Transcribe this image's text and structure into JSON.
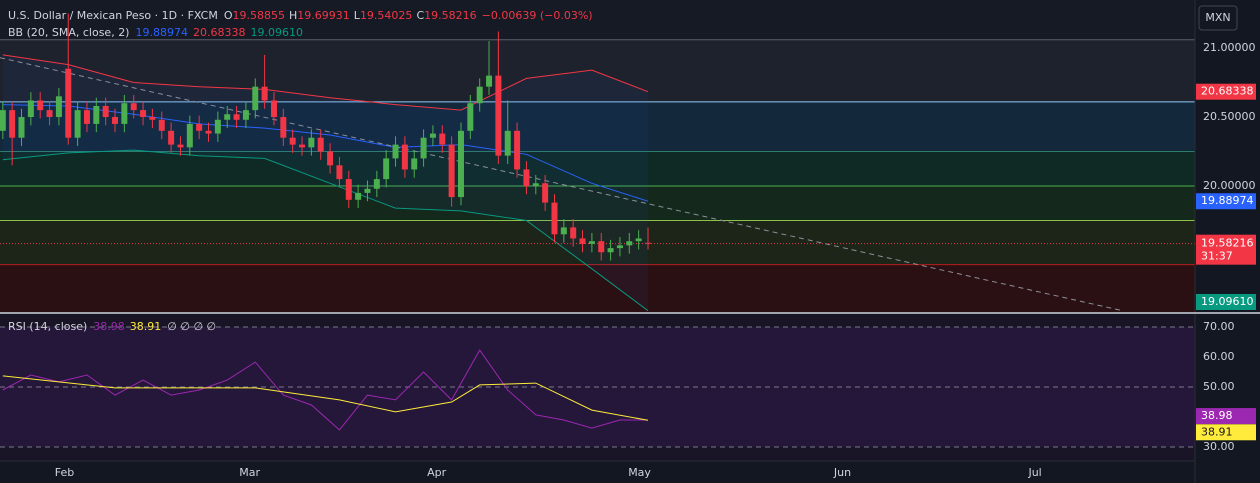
{
  "chart_data": {
    "type": "candlestick",
    "title": "U.S. Dollar / Mexican Peso · 1D · FXCM",
    "ohlc_letters": [
      "O",
      "H",
      "L",
      "C"
    ],
    "change": "−0.00639 (−0.03%)",
    "currency": "MXN",
    "countdown": "31:37",
    "up_color": "#4caf50",
    "down_color": "#f23645",
    "x": [
      0,
      1,
      2,
      3,
      4,
      5,
      6,
      7,
      8,
      9,
      10,
      11,
      12,
      13,
      14,
      15,
      16,
      17,
      18,
      19,
      20,
      21,
      22,
      23,
      24,
      25,
      26,
      27,
      28,
      29,
      30,
      31,
      32,
      33,
      34,
      35,
      36,
      37,
      38,
      39,
      40,
      41,
      42,
      43,
      44,
      45,
      46,
      47,
      48,
      49,
      50,
      51,
      52,
      53,
      54,
      55,
      56,
      57,
      58,
      59,
      60,
      61,
      62,
      63,
      64,
      65,
      66,
      67,
      68,
      69
    ],
    "open": [
      20.4,
      20.55,
      20.35,
      20.5,
      20.62,
      20.55,
      20.5,
      20.85,
      20.35,
      20.55,
      20.45,
      20.58,
      20.5,
      20.45,
      20.6,
      20.55,
      20.5,
      20.48,
      20.4,
      20.3,
      20.28,
      20.45,
      20.4,
      20.38,
      20.48,
      20.52,
      20.48,
      20.55,
      20.72,
      20.62,
      20.5,
      20.35,
      20.3,
      20.28,
      20.35,
      20.25,
      20.15,
      20.05,
      19.9,
      19.95,
      19.98,
      20.05,
      20.2,
      20.3,
      20.12,
      20.2,
      20.35,
      20.38,
      20.3,
      19.92,
      20.4,
      20.6,
      20.72,
      20.8,
      20.22,
      20.4,
      20.12,
      20.0,
      20.02,
      19.88,
      19.65,
      19.7,
      19.62,
      19.58,
      19.6,
      19.52,
      19.55,
      19.57,
      19.6,
      19.58855
    ],
    "high": [
      20.61,
      20.61,
      20.56,
      20.68,
      20.68,
      20.61,
      20.71,
      21.25,
      20.61,
      20.61,
      20.64,
      20.64,
      20.56,
      20.66,
      20.66,
      20.61,
      20.56,
      20.54,
      20.46,
      20.36,
      20.51,
      20.51,
      20.46,
      20.54,
      20.58,
      20.58,
      20.61,
      20.78,
      20.95,
      20.68,
      20.56,
      20.41,
      20.36,
      20.41,
      20.41,
      20.31,
      20.21,
      20.11,
      20.01,
      20.04,
      20.11,
      20.26,
      20.36,
      20.36,
      20.26,
      20.41,
      20.44,
      20.44,
      20.36,
      20.46,
      20.66,
      20.78,
      21.05,
      21.12,
      20.62,
      20.46,
      20.18,
      20.08,
      20.08,
      19.94,
      19.76,
      19.76,
      19.68,
      19.66,
      19.66,
      19.61,
      19.63,
      19.66,
      19.68,
      19.69931
    ],
    "low": [
      20.34,
      20.15,
      20.29,
      20.44,
      20.49,
      20.44,
      20.44,
      20.3,
      20.29,
      20.39,
      20.39,
      20.44,
      20.39,
      20.39,
      20.49,
      20.44,
      20.42,
      20.34,
      20.24,
      20.22,
      20.22,
      20.34,
      20.32,
      20.32,
      20.42,
      20.42,
      20.42,
      20.49,
      20.56,
      20.44,
      20.29,
      20.24,
      20.22,
      20.22,
      20.19,
      20.09,
      19.99,
      19.84,
      19.84,
      19.89,
      19.92,
      19.99,
      20.14,
      20.06,
      20.06,
      20.14,
      20.29,
      20.24,
      19.85,
      19.86,
      20.34,
      20.54,
      20.66,
      20.16,
      20.16,
      20.06,
      19.94,
      19.94,
      19.82,
      19.59,
      19.59,
      19.56,
      19.52,
      19.52,
      19.46,
      19.46,
      19.49,
      19.51,
      19.54,
      19.54025
    ],
    "close": [
      20.55,
      20.35,
      20.5,
      20.62,
      20.55,
      20.5,
      20.65,
      20.35,
      20.55,
      20.45,
      20.58,
      20.5,
      20.45,
      20.6,
      20.55,
      20.5,
      20.48,
      20.4,
      20.3,
      20.28,
      20.45,
      20.4,
      20.38,
      20.48,
      20.52,
      20.48,
      20.55,
      20.72,
      20.62,
      20.5,
      20.35,
      20.3,
      20.28,
      20.35,
      20.25,
      20.15,
      20.05,
      19.9,
      19.95,
      19.98,
      20.05,
      20.2,
      20.3,
      20.12,
      20.2,
      20.35,
      20.38,
      20.3,
      19.92,
      20.4,
      20.6,
      20.72,
      20.8,
      20.22,
      20.4,
      20.12,
      20.0,
      20.02,
      19.88,
      19.65,
      19.7,
      19.62,
      19.58,
      19.6,
      19.52,
      19.55,
      19.57,
      19.6,
      19.62,
      19.58216
    ],
    "xlim": [
      -0.3,
      127.5
    ],
    "xticks": [
      {
        "value": 6.6,
        "label": "Feb"
      },
      {
        "value": 26.4,
        "label": "Mar"
      },
      {
        "value": 46.4,
        "label": "Apr"
      },
      {
        "value": 68.1,
        "label": "May"
      },
      {
        "value": 89.8,
        "label": "Jun"
      },
      {
        "value": 110.4,
        "label": "Jul"
      }
    ],
    "ylim": [
      19.087,
      21.348
    ],
    "yticks": [
      {
        "value": 21,
        "label": "21.00000"
      },
      {
        "value": 20.5,
        "label": "20.50000"
      },
      {
        "value": 20,
        "label": "20.00000"
      }
    ],
    "levels": [
      21.06,
      20.61,
      20.25,
      20.0,
      19.75,
      19.43
    ],
    "level_colors": [
      "#5d606b",
      "#90caf9",
      "#2e7d6b",
      "#4caf50",
      "#8bc34a",
      "#b71c1c"
    ],
    "zone_colors": [
      "#161a25",
      "#1e222d",
      "#13283a",
      "#0f2a25",
      "#14281c",
      "#1c2518",
      "#2b1013"
    ],
    "trendline": {
      "x": [
        -0.3,
        119.5
      ],
      "values": [
        20.93,
        19.1
      ],
      "color": "#8a8f9a"
    },
    "bollinger": {
      "label": "BB (20, SMA, close, 2)",
      "fill": "#2962ff",
      "x": [
        0,
        7,
        14,
        21,
        28,
        35,
        42,
        49,
        56,
        63,
        69
      ],
      "series": [
        {
          "color": "#f23645",
          "values": [
            20.95,
            20.88,
            20.75,
            20.72,
            20.7,
            20.64,
            20.59,
            20.55,
            20.78,
            20.84,
            20.68338
          ]
        },
        {
          "color": "#2962ff",
          "values": [
            20.59,
            20.58,
            20.52,
            20.45,
            20.42,
            20.37,
            20.28,
            20.3,
            20.23,
            20.02,
            19.88974
          ]
        },
        {
          "color": "#089981",
          "values": [
            20.19,
            20.24,
            20.26,
            20.22,
            20.2,
            20.02,
            19.84,
            19.82,
            19.75,
            19.4,
            19.0961
          ],
          "last_label": "19.09610"
        }
      ]
    },
    "rsi": {
      "label": "RSI (14, close)",
      "extra": "∅ ∅ ∅ ∅",
      "ylim": [
        25.67,
        74
      ],
      "yticks": [
        {
          "value": 70,
          "label": "70.00"
        },
        {
          "value": 60,
          "label": "60.00"
        },
        {
          "value": 50,
          "label": "50.00"
        },
        {
          "value": 30,
          "label": "30.00"
        }
      ],
      "levels": [
        70,
        50,
        30
      ],
      "series": [
        {
          "color": "#9c27b0",
          "x": [
            0,
            3,
            6,
            9,
            12,
            15,
            18,
            21,
            24,
            27,
            30,
            33,
            36,
            39,
            42,
            45,
            48,
            51,
            54,
            57,
            60,
            63,
            66,
            69
          ],
          "values": [
            49,
            54,
            51.7,
            54,
            47.3,
            52.3,
            47.3,
            49,
            52.3,
            58.3,
            47.3,
            44,
            35.7,
            47.3,
            45.7,
            55,
            45.7,
            62.3,
            49,
            40.7,
            39,
            36.3,
            39,
            38.98
          ]
        },
        {
          "color": "#ffeb3b",
          "x": [
            0,
            12,
            27,
            36,
            42,
            48,
            51,
            57,
            63,
            69
          ],
          "values": [
            53.7,
            49.7,
            49.7,
            45.7,
            41.7,
            45,
            50.7,
            51.3,
            42.3,
            38.91
          ]
        }
      ]
    }
  }
}
